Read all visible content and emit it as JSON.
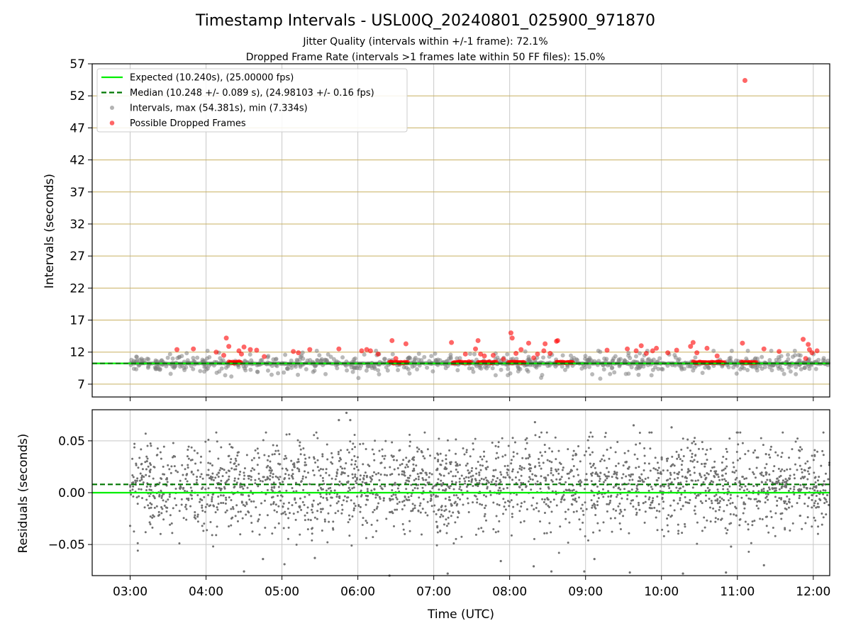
{
  "figure": {
    "title": "Timestamp Intervals - USL00Q_20240801_025900_971870",
    "subtitle_1": "Jitter Quality (intervals within +/-1 frame): 72.1%",
    "subtitle_2": "Dropped Frame Rate (intervals >1 frames late within 50 FF files): 15.0%",
    "xlabel": "Time (UTC)"
  },
  "colors": {
    "expected": "#00ee00",
    "median": "#007700",
    "intervals": "#808080",
    "dropped": "#ff0000",
    "hgrid_top": "#c8b060",
    "vgrid": "#c8c8c8",
    "residuals": "#707070"
  },
  "chart_data": [
    {
      "type": "scatter",
      "ylabel": "Intervals (seconds)",
      "xlim": [
        "02:30",
        "12:13"
      ],
      "ylim": [
        5,
        57
      ],
      "x_ticks": [
        "03:00",
        "04:00",
        "05:00",
        "06:00",
        "07:00",
        "08:00",
        "09:00",
        "10:00",
        "11:00",
        "12:00"
      ],
      "y_ticks": [
        7,
        12,
        17,
        22,
        27,
        32,
        37,
        42,
        47,
        52,
        57
      ],
      "grid": true,
      "legend_position": "top-left",
      "legend": [
        "Expected (10.240s), (25.00000 fps)",
        "Median (10.248 +/- 0.089 s), (24.98103 +/- 0.16 fps)",
        "Intervals, max (54.381s), min (7.334s)",
        "Possible Dropped Frames"
      ],
      "expected_interval": 10.24,
      "median_interval": 10.248,
      "interval_max": 54.381,
      "interval_min": 7.334,
      "dropped_points": [
        [
          "03:37",
          12.4
        ],
        [
          "03:50",
          12.5
        ],
        [
          "04:08",
          12.0
        ],
        [
          "04:14",
          11.5
        ],
        [
          "04:16",
          14.2
        ],
        [
          "04:18",
          12.9
        ],
        [
          "04:22",
          10.3
        ],
        [
          "04:26",
          12.2
        ],
        [
          "04:28",
          11.7
        ],
        [
          "04:30",
          12.8
        ],
        [
          "04:35",
          12.4
        ],
        [
          "04:40",
          12.3
        ],
        [
          "04:46",
          11.3
        ],
        [
          "05:09",
          12.1
        ],
        [
          "05:13",
          11.9
        ],
        [
          "05:22",
          12.4
        ],
        [
          "05:45",
          12.5
        ],
        [
          "06:03",
          12.2
        ],
        [
          "06:07",
          12.4
        ],
        [
          "06:10",
          12.2
        ],
        [
          "06:16",
          11.7
        ],
        [
          "06:27",
          13.8
        ],
        [
          "06:30",
          11.0
        ],
        [
          "06:38",
          13.3
        ],
        [
          "07:14",
          13.5
        ],
        [
          "07:25",
          11.7
        ],
        [
          "07:33",
          12.5
        ],
        [
          "07:35",
          13.8
        ],
        [
          "07:37",
          11.7
        ],
        [
          "07:40",
          11.4
        ],
        [
          "07:47",
          11.5
        ],
        [
          "07:55",
          10.9
        ],
        [
          "08:01",
          15.0
        ],
        [
          "08:02",
          14.2
        ],
        [
          "08:05",
          11.8
        ],
        [
          "08:09",
          12.4
        ],
        [
          "08:15",
          13.4
        ],
        [
          "08:19",
          11.1
        ],
        [
          "08:22",
          11.7
        ],
        [
          "08:27",
          12.2
        ],
        [
          "08:28",
          13.3
        ],
        [
          "08:32",
          11.8
        ],
        [
          "08:37",
          13.7
        ],
        [
          "08:38",
          13.8
        ],
        [
          "09:17",
          12.3
        ],
        [
          "09:33",
          12.5
        ],
        [
          "09:40",
          12.2
        ],
        [
          "09:44",
          13.0
        ],
        [
          "09:48",
          11.8
        ],
        [
          "09:53",
          12.2
        ],
        [
          "09:56",
          12.6
        ],
        [
          "10:05",
          11.9
        ],
        [
          "10:12",
          12.3
        ],
        [
          "10:23",
          12.9
        ],
        [
          "10:25",
          13.5
        ],
        [
          "10:28",
          11.9
        ],
        [
          "10:36",
          12.6
        ],
        [
          "10:44",
          11.4
        ],
        [
          "11:04",
          13.4
        ],
        [
          "11:06",
          54.4
        ],
        [
          "11:21",
          12.5
        ],
        [
          "11:33",
          12.1
        ],
        [
          "11:52",
          14.0
        ],
        [
          "11:54",
          11.0
        ],
        [
          "11:56",
          13.2
        ],
        [
          "11:57",
          12.4
        ],
        [
          "11:59",
          11.9
        ],
        [
          "12:03",
          12.2
        ]
      ],
      "dropped_clusters": [
        {
          "from": "04:18",
          "to": "04:28",
          "y": 10.4
        },
        {
          "from": "06:25",
          "to": "06:40",
          "y": 10.4
        },
        {
          "from": "07:15",
          "to": "07:30",
          "y": 10.4
        },
        {
          "from": "07:35",
          "to": "07:50",
          "y": 10.4
        },
        {
          "from": "07:59",
          "to": "08:12",
          "y": 10.4
        },
        {
          "from": "08:37",
          "to": "08:50",
          "y": 10.4
        },
        {
          "from": "10:25",
          "to": "10:50",
          "y": 10.4
        },
        {
          "from": "11:03",
          "to": "11:15",
          "y": 10.4
        }
      ],
      "interval_spread": {
        "from": "03:00",
        "to": "12:13",
        "center": 10.24,
        "low": 7.3,
        "high": 12.2,
        "count": 700
      }
    },
    {
      "type": "scatter",
      "ylabel": "Residuals (seconds)",
      "xlabel": "Time (UTC)",
      "xlim": [
        "02:30",
        "12:13"
      ],
      "ylim": [
        -0.08,
        0.08
      ],
      "x_ticks": [
        "03:00",
        "04:00",
        "05:00",
        "06:00",
        "07:00",
        "08:00",
        "09:00",
        "10:00",
        "11:00",
        "12:00"
      ],
      "y_ticks": [
        "−0.05",
        "0.00",
        "0.05"
      ],
      "y_tick_values": [
        -0.05,
        0.0,
        0.05
      ],
      "grid": true,
      "expected_residual": 0.0,
      "median_residual": 0.008,
      "residual_spread": {
        "from": "03:00",
        "to": "12:13",
        "center": 0.008,
        "sd": 0.022,
        "count": 2400
      },
      "outliers": [
        [
          "03:00",
          -0.032
        ],
        [
          "05:02",
          -0.069
        ],
        [
          "04:30",
          -0.076
        ],
        [
          "04:45",
          -0.064
        ],
        [
          "05:26",
          -0.063
        ],
        [
          "05:45",
          0.07
        ],
        [
          "05:51",
          0.077
        ],
        [
          "05:54",
          0.07
        ],
        [
          "06:25",
          -0.08
        ],
        [
          "07:11",
          -0.078
        ],
        [
          "07:53",
          -0.066
        ],
        [
          "08:19",
          -0.071
        ],
        [
          "08:20",
          0.068
        ],
        [
          "08:33",
          -0.076
        ],
        [
          "08:59",
          -0.076
        ],
        [
          "09:07",
          -0.064
        ],
        [
          "09:35",
          -0.077
        ],
        [
          "09:38",
          0.065
        ],
        [
          "10:08",
          0.063
        ],
        [
          "10:17",
          -0.078
        ],
        [
          "10:51",
          -0.077
        ],
        [
          "10:55",
          -0.052
        ],
        [
          "11:21",
          -0.07
        ]
      ]
    }
  ]
}
